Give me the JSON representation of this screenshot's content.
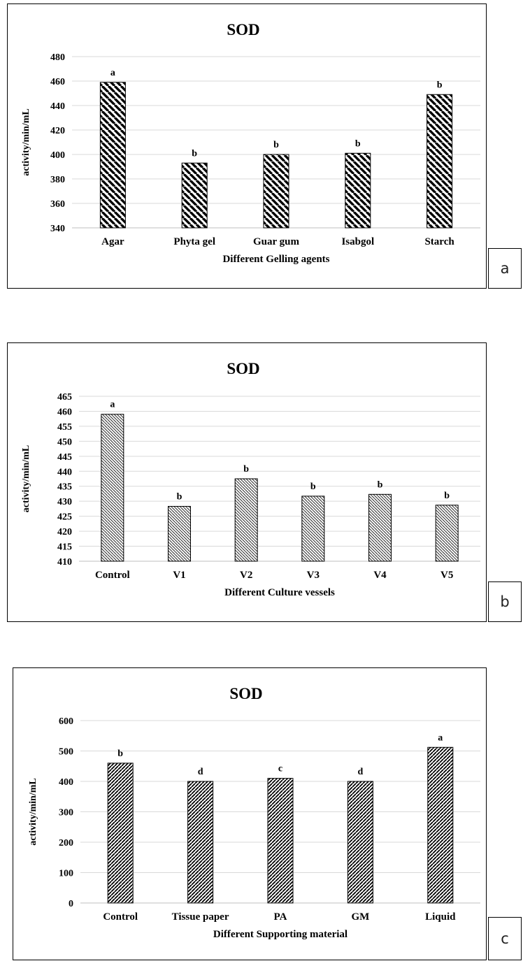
{
  "chart_data": [
    {
      "type": "bar",
      "panel_label": "a",
      "title": "SOD",
      "xlabel": "Different Gelling agents",
      "ylabel": "activity/min/mL",
      "categories": [
        "Agar",
        "Phyta gel",
        "Guar gum",
        "Isabgol",
        "Starch"
      ],
      "values": [
        459,
        393,
        400,
        401,
        449
      ],
      "letters": [
        "a",
        "b",
        "b",
        "b",
        "b"
      ],
      "ylim": [
        340,
        480
      ],
      "yticks": [
        340,
        360,
        380,
        400,
        420,
        440,
        460,
        480
      ],
      "pattern": "wide-backward-hatch",
      "grid": true
    },
    {
      "type": "bar",
      "panel_label": "b",
      "title": "SOD",
      "xlabel": "Different Culture vessels",
      "ylabel": "activity/min/mL",
      "categories": [
        "Control",
        "V1",
        "V2",
        "V3",
        "V4",
        "V5"
      ],
      "values": [
        459,
        428.3,
        437.5,
        431.7,
        432.3,
        428.7
      ],
      "letters": [
        "a",
        "b",
        "b",
        "b",
        "b",
        "b"
      ],
      "ylim": [
        410,
        465
      ],
      "yticks": [
        410,
        415,
        420,
        425,
        430,
        435,
        440,
        445,
        450,
        455,
        460,
        465
      ],
      "pattern": "fine-backward-hatch",
      "grid": true
    },
    {
      "type": "bar",
      "panel_label": "c",
      "title": "SOD",
      "xlabel": "Different Supporting material",
      "ylabel": "activity/min/mL",
      "categories": [
        "Control",
        "Tissue paper",
        "PA",
        "GM",
        "Liquid"
      ],
      "values": [
        460,
        400,
        410,
        400,
        512
      ],
      "letters": [
        "b",
        "d",
        "c",
        "d",
        "a"
      ],
      "ylim": [
        0,
        600
      ],
      "yticks": [
        0,
        100,
        200,
        300,
        400,
        500,
        600
      ],
      "pattern": "forward-hatch",
      "grid": true
    }
  ]
}
